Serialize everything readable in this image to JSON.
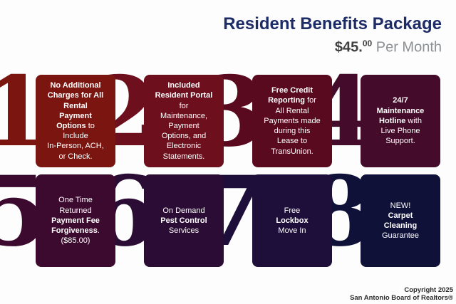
{
  "header": {
    "title": "Resident Benefits Package",
    "price_amount": "$45.",
    "price_cents": "00",
    "price_suffix": " Per Month"
  },
  "cards": [
    {
      "number": "1",
      "color": "#7a1510",
      "segments": [
        {
          "t": "No Additional\nCharges for All\nRental\nPayment\nOptions",
          "b": true
        },
        {
          "t": " to\nInclude\nIn-Person, ACH,\nor Check.",
          "b": false
        }
      ]
    },
    {
      "number": "2",
      "color": "#6d0f1d",
      "segments": [
        {
          "t": "Included\nResident Portal",
          "b": true
        },
        {
          "t": "\nfor\nMaintenance,\nPayment\nOptions, and\nElectronic\nStatements.",
          "b": false
        }
      ]
    },
    {
      "number": "3",
      "color": "#590a1f",
      "segments": [
        {
          "t": "Free Credit\nReporting",
          "b": true
        },
        {
          "t": " for\nAll Rental\nPayments made\nduring this\nLease to\nTransUnion.",
          "b": false
        }
      ]
    },
    {
      "number": "4",
      "color": "#440c2a",
      "segments": [
        {
          "t": "24/7\nMaintenance\nHotline",
          "b": true
        },
        {
          "t": " with\nLive Phone\nSupport.",
          "b": false
        }
      ]
    },
    {
      "number": "5",
      "color": "#3c0a2e",
      "segments": [
        {
          "t": "One Time\nReturned\n",
          "b": false
        },
        {
          "t": "Payment Fee\nForgiveness",
          "b": true
        },
        {
          "t": ".\n($85.00)",
          "b": false
        }
      ]
    },
    {
      "number": "6",
      "color": "#2b0c34",
      "segments": [
        {
          "t": "On Demand\n",
          "b": false
        },
        {
          "t": "Pest Control",
          "b": true
        },
        {
          "t": "\nServices",
          "b": false
        }
      ]
    },
    {
      "number": "7",
      "color": "#1d0e3a",
      "segments": [
        {
          "t": "Free\n",
          "b": false
        },
        {
          "t": "Lockbox",
          "b": true
        },
        {
          "t": "\nMove In",
          "b": false
        }
      ]
    },
    {
      "number": "8",
      "color": "#0f1139",
      "segments": [
        {
          "t": "NEW!\n",
          "b": false
        },
        {
          "t": "Carpet\nCleaning",
          "b": true
        },
        {
          "t": "\nGuarantee",
          "b": false
        }
      ]
    }
  ],
  "footer": {
    "line1": "Copyright 2025",
    "line2": "San Antonio Board of Realtors®"
  },
  "colors": {
    "title": "#1d2b66",
    "price_amount": "#3f3f3f",
    "price_suffix": "#8d9093",
    "card_text": "#ffffff",
    "footer_text": "#2b2b2b",
    "background": "#fdfdfd"
  }
}
